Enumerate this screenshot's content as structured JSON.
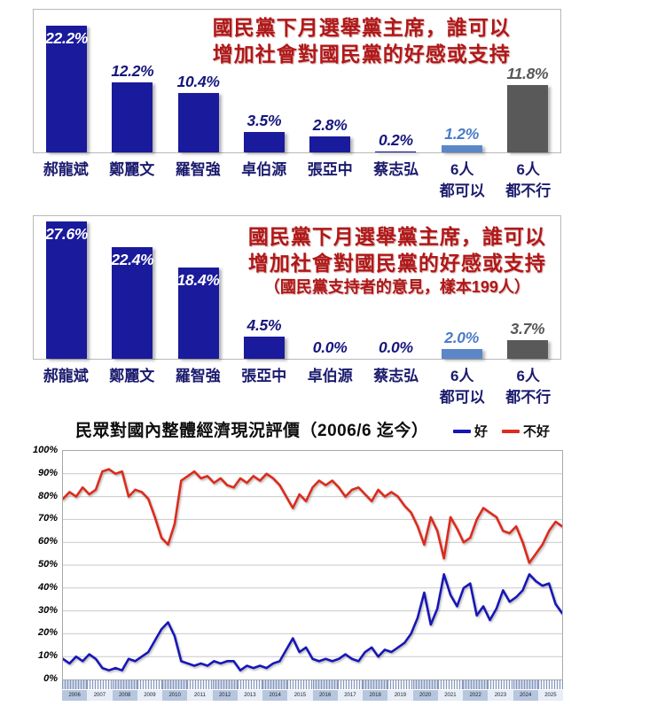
{
  "colors": {
    "navy": "#1a1a9c",
    "lightblue": "#5b87c8",
    "gray": "#595959",
    "value_navy": "#16167e",
    "value_lightblue": "#4a7cc7",
    "value_gray": "#58585a",
    "title_red": "#b01818",
    "line_good": "#1414b8",
    "line_bad": "#dd2c1c",
    "category_label": "#1b1b6e"
  },
  "chart_data": [
    {
      "type": "bar",
      "title": "國民黨下月選舉黨主席，誰可以增加社會對國民黨的好感或支持",
      "title_lines": [
        "國民黨下月選舉黨主席，誰可以",
        "增加社會對國民黨的好感或支持"
      ],
      "categories": [
        "郝龍斌",
        "鄭麗文",
        "羅智強",
        "卓伯源",
        "張亞中",
        "蔡志弘",
        "6人都可以",
        "6人都不行"
      ],
      "category_lines": [
        [
          "郝龍斌"
        ],
        [
          "鄭麗文"
        ],
        [
          "羅智強"
        ],
        [
          "卓伯源"
        ],
        [
          "張亞中"
        ],
        [
          "蔡志弘"
        ],
        [
          "6人",
          "都可以"
        ],
        [
          "6人",
          "都不行"
        ]
      ],
      "values": [
        22.2,
        12.2,
        10.4,
        3.5,
        2.8,
        0.2,
        1.2,
        11.8
      ],
      "value_labels": [
        "22.2%",
        "12.2%",
        "10.4%",
        "3.5%",
        "2.8%",
        "0.2%",
        "1.2%",
        "11.8%"
      ],
      "bar_styles": [
        "navy",
        "navy",
        "navy",
        "navy",
        "navy",
        "navy",
        "lightblue",
        "gray"
      ],
      "label_inside": [
        true,
        false,
        false,
        false,
        false,
        false,
        false,
        false
      ],
      "ylim": [
        0,
        25
      ],
      "grid": false
    },
    {
      "type": "bar",
      "title": "國民黨下月選舉黨主席，誰可以增加社會對國民黨的好感或支持",
      "title_lines": [
        "國民黨下月選舉黨主席，誰可以",
        "增加社會對國民黨的好感或支持"
      ],
      "subtitle": "（國民黨支持者的意見，樣本199人）",
      "categories": [
        "郝龍斌",
        "鄭麗文",
        "羅智強",
        "張亞中",
        "卓伯源",
        "蔡志弘",
        "6人都可以",
        "6人都不行"
      ],
      "category_lines": [
        [
          "郝龍斌"
        ],
        [
          "鄭麗文"
        ],
        [
          "羅智強"
        ],
        [
          "張亞中"
        ],
        [
          "卓伯源"
        ],
        [
          "蔡志弘"
        ],
        [
          "6人",
          "都可以"
        ],
        [
          "6人",
          "都不行"
        ]
      ],
      "values": [
        27.6,
        22.4,
        18.4,
        4.5,
        0.0,
        0.0,
        2.0,
        3.7
      ],
      "value_labels": [
        "27.6%",
        "22.4%",
        "18.4%",
        "4.5%",
        "0.0%",
        "0.0%",
        "2.0%",
        "3.7%"
      ],
      "bar_styles": [
        "navy",
        "navy",
        "navy",
        "navy",
        "navy",
        "navy",
        "lightblue",
        "gray"
      ],
      "label_inside": [
        true,
        true,
        true,
        false,
        false,
        false,
        false,
        false
      ],
      "ylim": [
        0,
        29
      ],
      "grid": false
    },
    {
      "type": "line",
      "title": "民眾對國內整體經濟現況評價（2006/6 迄今）",
      "x_start": 2006.5,
      "x_step": 0.25,
      "x_years": [
        2006,
        2007,
        2008,
        2009,
        2010,
        2011,
        2012,
        2013,
        2014,
        2015,
        2016,
        2017,
        2018,
        2019,
        2020,
        2021,
        2022,
        2023,
        2024,
        2025
      ],
      "y_ticks": [
        "100%",
        "90%",
        "80%",
        "70%",
        "60%",
        "50%",
        "40%",
        "30%",
        "20%",
        "10%",
        "0%"
      ],
      "ylim": [
        0,
        100
      ],
      "grid": "horizontal",
      "legend_position": "top-right",
      "series": [
        {
          "name": "好",
          "color": "#1414b8",
          "values": [
            9,
            7,
            10,
            8,
            11,
            9,
            5,
            4,
            5,
            4,
            9,
            8,
            10,
            12,
            17,
            22,
            25,
            19,
            8,
            7,
            6,
            7,
            6,
            8,
            7,
            8,
            8,
            4,
            6,
            5,
            6,
            5,
            7,
            8,
            13,
            18,
            12,
            14,
            9,
            8,
            9,
            8,
            9,
            11,
            9,
            8,
            12,
            14,
            10,
            13,
            12,
            14,
            16,
            20,
            27,
            38,
            24,
            31,
            46,
            37,
            32,
            40,
            42,
            28,
            32,
            26,
            31,
            39,
            34,
            36,
            39,
            46,
            43,
            41,
            42,
            33,
            29
          ]
        },
        {
          "name": "不好",
          "color": "#dd2c1c",
          "values": [
            79,
            82,
            80,
            84,
            81,
            83,
            91,
            92,
            90,
            91,
            80,
            83,
            82,
            79,
            71,
            62,
            59,
            68,
            87,
            89,
            91,
            88,
            89,
            86,
            88,
            85,
            84,
            88,
            86,
            89,
            87,
            90,
            88,
            85,
            80,
            75,
            81,
            78,
            84,
            87,
            85,
            87,
            84,
            80,
            83,
            84,
            81,
            78,
            83,
            80,
            82,
            80,
            76,
            73,
            67,
            59,
            71,
            65,
            53,
            71,
            66,
            60,
            62,
            70,
            75,
            73,
            71,
            65,
            64,
            67,
            60,
            51,
            55,
            59,
            65,
            69,
            67
          ]
        }
      ]
    }
  ]
}
